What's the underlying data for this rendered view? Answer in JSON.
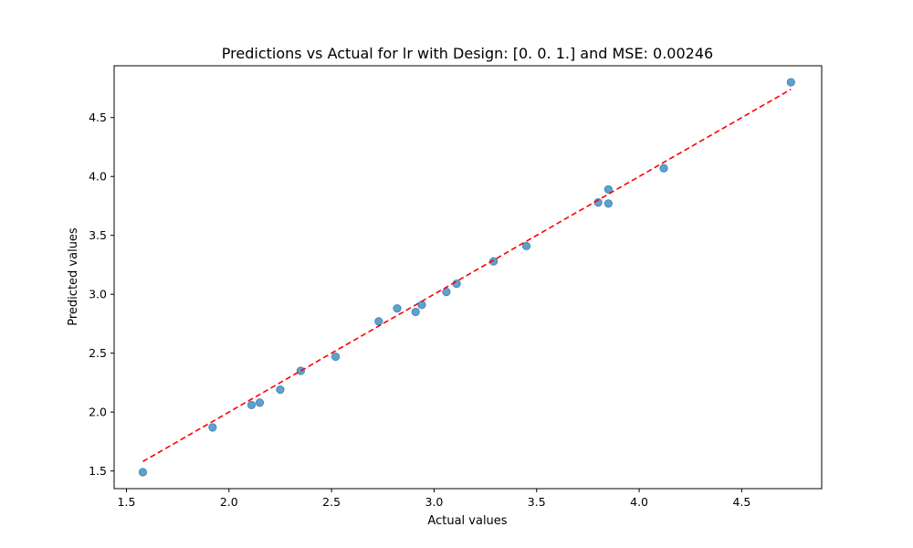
{
  "chart_data": {
    "type": "scatter",
    "title": "Predictions vs Actual for lr with Design: [0. 0. 1.] and MSE: 0.00246",
    "xlabel": "Actual values",
    "ylabel": "Predicted values",
    "xlim": [
      1.44,
      4.89
    ],
    "ylim": [
      1.35,
      4.94
    ],
    "xticks": [
      1.5,
      2.0,
      2.5,
      3.0,
      3.5,
      4.0,
      4.5
    ],
    "yticks": [
      1.5,
      2.0,
      2.5,
      3.0,
      3.5,
      4.0,
      4.5
    ],
    "grid": false,
    "point_color": "#1f77b4",
    "line_color": "#ff0000",
    "points": [
      {
        "x": 1.58,
        "y": 1.49
      },
      {
        "x": 1.92,
        "y": 1.87
      },
      {
        "x": 2.11,
        "y": 2.06
      },
      {
        "x": 2.15,
        "y": 2.08
      },
      {
        "x": 2.25,
        "y": 2.19
      },
      {
        "x": 2.35,
        "y": 2.35
      },
      {
        "x": 2.52,
        "y": 2.47
      },
      {
        "x": 2.73,
        "y": 2.77
      },
      {
        "x": 2.82,
        "y": 2.88
      },
      {
        "x": 2.91,
        "y": 2.85
      },
      {
        "x": 2.94,
        "y": 2.91
      },
      {
        "x": 3.06,
        "y": 3.02
      },
      {
        "x": 3.11,
        "y": 3.09
      },
      {
        "x": 3.29,
        "y": 3.28
      },
      {
        "x": 3.45,
        "y": 3.41
      },
      {
        "x": 3.8,
        "y": 3.78
      },
      {
        "x": 3.85,
        "y": 3.77
      },
      {
        "x": 3.85,
        "y": 3.89
      },
      {
        "x": 4.12,
        "y": 4.07
      },
      {
        "x": 4.74,
        "y": 4.8
      }
    ],
    "reference_line": {
      "x": [
        1.58,
        4.74
      ],
      "y": [
        1.58,
        4.74
      ]
    }
  }
}
